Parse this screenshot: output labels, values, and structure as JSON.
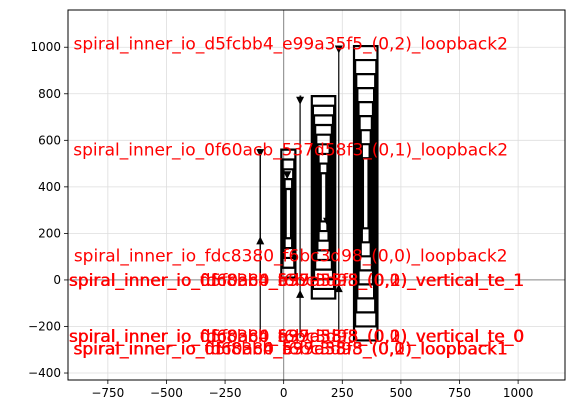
{
  "chart_data": {
    "type": "line",
    "title": "",
    "xlabel": "",
    "ylabel": "",
    "xlim": [
      -920,
      1200
    ],
    "ylim": [
      -430,
      1160
    ],
    "xticks": [
      -750,
      -500,
      -250,
      0,
      250,
      500,
      750,
      1000
    ],
    "yticks": [
      -400,
      -200,
      0,
      200,
      400,
      600,
      800,
      1000
    ],
    "xtick_labels": [
      "−750",
      "−500",
      "−250",
      "0",
      "250",
      "500",
      "750",
      "1000"
    ],
    "ytick_labels": [
      "−400",
      "−200",
      "0",
      "200",
      "400",
      "600",
      "800",
      "1000"
    ],
    "grid": true,
    "reference_lines": {
      "x": 0,
      "y": 0
    },
    "colors": {
      "annotation": "#ff0000",
      "path": "#000000",
      "grid": "#dddddd",
      "reference": "#888888"
    },
    "annotations": [
      {
        "text": "spiral_inner_io_d5fcbb4_e99a35f5_(0,2)_loopback2",
        "x": 30,
        "y": 1015
      },
      {
        "text": "spiral_inner_io_0f60acb_537d58f3_(0,1)_loopback2",
        "x": 30,
        "y": 560
      },
      {
        "text": "spiral_inner_io_fdc8380_f6bc3d98_(0,0)_loopback2",
        "x": 30,
        "y": 105
      },
      {
        "text": "spiral_inner_io_0f60acb_537d58f3_(0,1)_vertical_te_1",
        "x": 55,
        "y": 0
      },
      {
        "text": "spiral_inner_io_d5fcbb4_e99a35f5_(0,2)_vertical_te_1",
        "x": 55,
        "y": 0
      },
      {
        "text": "spiral_inner_io_fdc8380_f6bc3d98_(0,0)_vertical_te_1",
        "x": 55,
        "y": 0
      },
      {
        "text": "spiral_inner_io_0f60acb_537d58f3_(0,1)_vertical_te_0",
        "x": 55,
        "y": -240
      },
      {
        "text": "spiral_inner_io_d5fcbb4_e99a35f5_(0,2)_vertical_te_0",
        "x": 55,
        "y": -240
      },
      {
        "text": "spiral_inner_io_fdc8380_f6bc3d98_(0,0)_vertical_te_0",
        "x": 55,
        "y": -240
      },
      {
        "text": "spiral_inner_io_0f60acb_537d58f3_(0,1)_loopback1",
        "x": 30,
        "y": -295
      },
      {
        "text": "spiral_inner_io_d5fcbb4_e99a35f5_(0,2)_loopback1",
        "x": 30,
        "y": -295
      },
      {
        "text": "spiral_inner_io_fdc8380_f6bc3d98_(0,0)_loopback1",
        "x": 30,
        "y": -295
      }
    ],
    "spirals": [
      {
        "name": "spiral_inner_io_0f60acb_537d58f3_(0,1)",
        "x0": -10,
        "x1": 50,
        "y0": 10,
        "y1": 560,
        "turns": 5
      },
      {
        "name": "spiral_inner_io_fdc8380_f6bc3d98_(0,0)",
        "x0": 120,
        "x1": 220,
        "y0": -80,
        "y1": 790,
        "turns": 9
      },
      {
        "name": "spiral_inner_io_d5fcbb4_e99a35f5_(0,2)",
        "x0": 300,
        "x1": 400,
        "y0": -260,
        "y1": 1005,
        "turns": 9
      }
    ],
    "loop_traces": [
      {
        "x": [
          -100,
          -100,
          -110
        ],
        "y": [
          -250,
          560,
          560
        ]
      },
      {
        "x": [
          70,
          70,
          75
        ],
        "y": [
          -250,
          790,
          790
        ]
      },
      {
        "x": [
          235,
          235,
          245
        ],
        "y": [
          -250,
          1005,
          1005
        ]
      },
      {
        "x": [
          -100,
          -100
        ],
        "y": [
          0,
          560
        ]
      }
    ],
    "markers": [
      {
        "x": -100,
        "y": 545,
        "dir": "down"
      },
      {
        "x": -100,
        "y": 170,
        "dir": "up"
      },
      {
        "x": 70,
        "y": 770,
        "dir": "down"
      },
      {
        "x": 70,
        "y": -60,
        "dir": "up"
      },
      {
        "x": 235,
        "y": 990,
        "dir": "down"
      },
      {
        "x": 235,
        "y": -35,
        "dir": "up"
      },
      {
        "x": 185,
        "y": 250,
        "dir": "down"
      },
      {
        "x": 15,
        "y": 450,
        "dir": "down"
      }
    ]
  }
}
